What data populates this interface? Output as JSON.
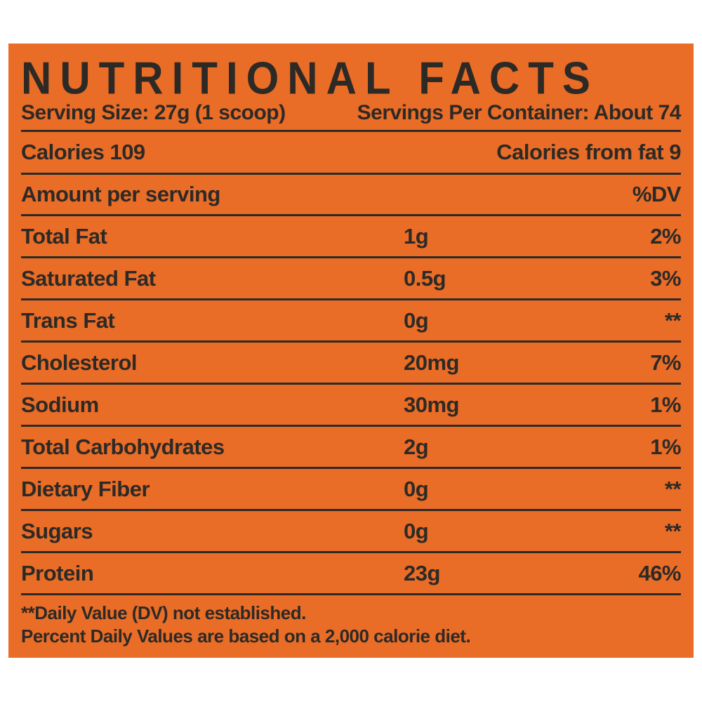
{
  "colors": {
    "background": "#E96C27",
    "ink": "#2D2A26",
    "page": "#ffffff"
  },
  "title": "NUTRITIONAL FACTS",
  "serving": {
    "size": "Serving Size: 27g (1 scoop)",
    "per_container": "Servings Per Container: About 74"
  },
  "calories": {
    "left": "Calories 109",
    "right": "Calories from fat 9"
  },
  "columns": {
    "amount_header": "Amount per serving",
    "dv_header": "%DV"
  },
  "rows": [
    {
      "label": "Total Fat",
      "amount": "1g",
      "dv": "2%"
    },
    {
      "label": "Saturated Fat",
      "amount": "0.5g",
      "dv": "3%"
    },
    {
      "label": "Trans Fat",
      "amount": "0g",
      "dv": "**"
    },
    {
      "label": "Cholesterol",
      "amount": "20mg",
      "dv": "7%"
    },
    {
      "label": "Sodium",
      "amount": "30mg",
      "dv": "1%"
    },
    {
      "label": "Total Carbohydrates",
      "amount": "2g",
      "dv": "1%"
    },
    {
      "label": "Dietary Fiber",
      "amount": "0g",
      "dv": "**"
    },
    {
      "label": "Sugars",
      "amount": "0g",
      "dv": "**"
    },
    {
      "label": "Protein",
      "amount": "23g",
      "dv": "46%"
    }
  ],
  "footnotes": [
    "**Daily Value (DV) not established.",
    "Percent Daily Values are based on a 2,000 calorie diet."
  ]
}
